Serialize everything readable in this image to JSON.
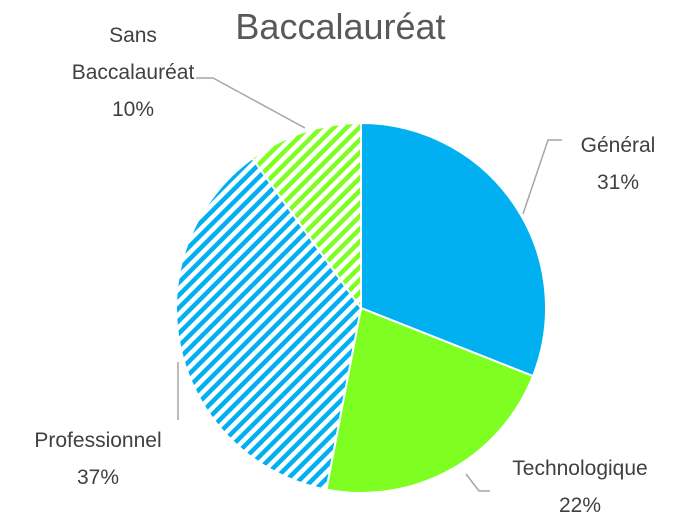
{
  "chart_data": {
    "type": "pie",
    "title": "Baccalauréat",
    "categories": [
      "Général",
      "Technologique",
      "Professionnel",
      "Sans Baccalauréat"
    ],
    "values": [
      31,
      22,
      37,
      10
    ],
    "value_labels": [
      "31%",
      "22%",
      "37%",
      "10%"
    ],
    "colors": [
      "#00b0f0",
      "#7fff21",
      "#00b0f0",
      "#7fff21"
    ],
    "hatched": [
      false,
      false,
      true,
      true
    ]
  }
}
